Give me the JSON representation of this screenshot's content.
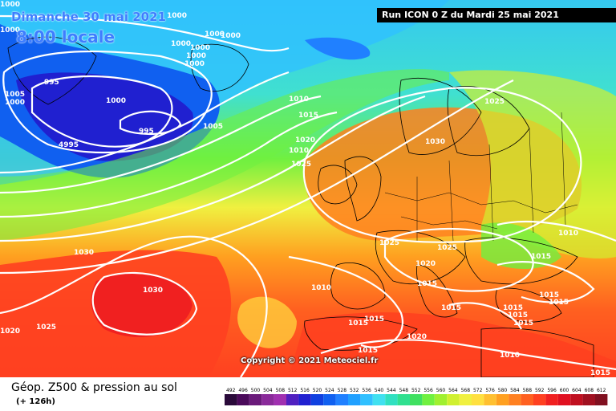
{
  "header": {
    "date": "Dimanche 30 mai 2021",
    "time": "8:00 locale",
    "run": "Run ICON 0 Z du Mardi 25 mai 2021"
  },
  "copyright": "Copyright © 2021 Meteociel.fr",
  "footer": {
    "title": "Géop. Z500 & pression au sol",
    "subtitle": "(+ 126h)"
  },
  "scale": {
    "labels": [
      "492",
      "496",
      "500",
      "504",
      "508",
      "512",
      "516",
      "520",
      "524",
      "528",
      "532",
      "536",
      "540",
      "544",
      "548",
      "552",
      "556",
      "560",
      "564",
      "568",
      "572",
      "576",
      "580",
      "584",
      "588",
      "592",
      "596",
      "600",
      "604",
      "608",
      "612"
    ],
    "colors": [
      "#2a0a3a",
      "#4a0a5a",
      "#6a1a7a",
      "#8a2a9a",
      "#a030b0",
      "#5020c0",
      "#2020d0",
      "#1040e0",
      "#1060f0",
      "#2080ff",
      "#20a0ff",
      "#30c0ff",
      "#40e0f0",
      "#30e0c0",
      "#30e090",
      "#40e060",
      "#70f040",
      "#a0f030",
      "#d0f030",
      "#f0f040",
      "#ffe040",
      "#ffc030",
      "#ffa020",
      "#ff8020",
      "#ff6020",
      "#ff4020",
      "#f02020",
      "#e01020",
      "#c01020",
      "#a01020",
      "#801020"
    ]
  },
  "isobars": [
    "1000",
    "1000",
    "1000",
    "1000",
    "1000",
    "1000",
    "1000",
    "1000",
    "1000",
    "1000",
    "995",
    "995",
    "4995",
    "1005",
    "1010",
    "1015",
    "1020",
    "1025",
    "1030",
    "1025",
    "1030",
    "1030",
    "1020",
    "1025",
    "1025",
    "1010",
    "1025",
    "1015",
    "1020",
    "1015",
    "1010",
    "1015",
    "1015",
    "1015",
    "1015",
    "1015",
    "1020",
    "1015",
    "1015",
    "1010",
    "1015",
    "1015",
    "1015",
    "1010",
    "1005",
    "1000"
  ]
}
